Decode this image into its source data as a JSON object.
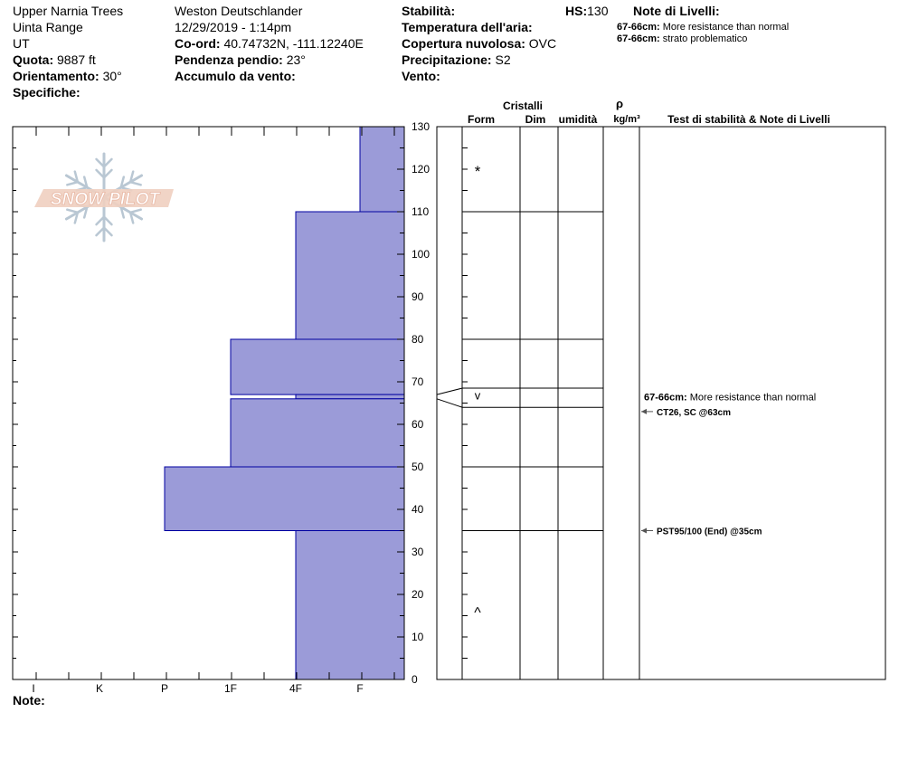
{
  "header": {
    "location": "Upper Narnia Trees",
    "range": "Uinta Range",
    "state": "UT",
    "elevation_label": "Quota:",
    "elevation_value": "9887 ft",
    "aspect_label": "Orientamento:",
    "aspect_value": "30°",
    "specifics_label": "Specifiche:",
    "observer": "Weston Deutschlander",
    "datetime": "12/29/2019 - 1:14pm",
    "coord_label": "Co-ord:",
    "coord_value": "40.74732N, -111.12240E",
    "slope_label": "Pendenza pendio:",
    "slope_value": "23°",
    "wind_loading_label": "Accumulo da vento:",
    "stability_label": "Stabilità:",
    "air_temp_label": "Temperatura dell'aria:",
    "sky_label": "Copertura nuvolosa:",
    "sky_value": "OVC",
    "precip_label": "Precipitazione:",
    "precip_value": "S2",
    "wind_label": "Vento:",
    "hs_label": "HS:",
    "hs_value": "130",
    "layer_notes_label": "Note di Livelli:",
    "layer_notes": [
      {
        "range": "67-66cm:",
        "text": "More resistance than normal"
      },
      {
        "range": "67-66cm:",
        "text": "strato problematico"
      }
    ]
  },
  "footer": {
    "notes_label": "Note:"
  },
  "logo_text": "SNOW PILOT",
  "chart_data": {
    "type": "bar",
    "title": "",
    "hardness_scale": [
      "I",
      "K",
      "P",
      "1F",
      "4F",
      "F"
    ],
    "height_axis": {
      "min": 0,
      "max": 130,
      "ticks": [
        0,
        10,
        20,
        30,
        40,
        50,
        60,
        70,
        80,
        90,
        100,
        110,
        120,
        130
      ]
    },
    "layers": [
      {
        "top": 130,
        "bottom": 110,
        "hardness": "F"
      },
      {
        "top": 110,
        "bottom": 80,
        "hardness": "4F"
      },
      {
        "top": 80,
        "bottom": 67,
        "hardness": "1F"
      },
      {
        "top": 67,
        "bottom": 66,
        "hardness": "4F"
      },
      {
        "top": 66,
        "bottom": 50,
        "hardness": "1F"
      },
      {
        "top": 50,
        "bottom": 35,
        "hardness": "P"
      },
      {
        "top": 35,
        "bottom": 0,
        "hardness": "4F"
      }
    ],
    "boundaries": [
      110,
      80,
      67,
      66,
      50,
      35
    ],
    "crystal_symbols": [
      {
        "height": 120,
        "symbol": "*"
      },
      {
        "height": 66.5,
        "symbol": "v"
      },
      {
        "height": 17,
        "symbol": "^"
      }
    ],
    "column_headers": {
      "crystals": "Cristalli",
      "form": "Form",
      "size": "Dim",
      "moisture": "umidità",
      "density_symbol": "ρ",
      "density_unit": "kg/m³",
      "stability": "Test di stabilità & Note di Livelli"
    },
    "stability_notes": [
      {
        "height": 66.5,
        "label": "67-66cm:",
        "text": "More resistance than normal",
        "arrow": false
      },
      {
        "height": 63,
        "text": "CT26, SC @63cm",
        "arrow": true
      },
      {
        "height": 35,
        "text": "PST95/100 (End) @35cm",
        "arrow": true
      }
    ],
    "colors": {
      "bar_fill": "#9b9bd8",
      "bar_stroke": "#0000a0"
    }
  }
}
